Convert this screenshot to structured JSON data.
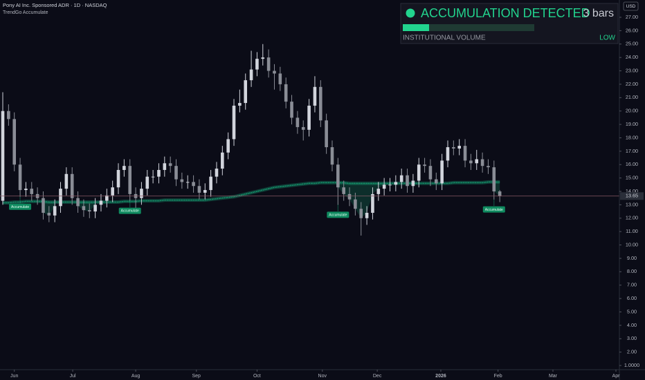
{
  "chart_data": {
    "type": "candlestick",
    "title": "Pony AI Inc. Sponsored ADR · 1D · NASDAQ",
    "indicator": "TrendGo Accumulate",
    "currency": "USD",
    "up_color": "#d1d4dc",
    "down_color": "#8a8d96",
    "open": [
      13.3,
      20,
      19.4,
      16,
      14.1,
      14.2,
      13.8,
      13.5,
      12.4,
      12.2,
      12.9,
      14.2,
      15.3,
      13.5,
      12.9,
      12.6,
      12.5,
      13,
      13.3,
      13.7,
      14.3,
      15.6,
      15.9,
      13.8,
      13.5,
      14.2,
      15.1,
      15.1,
      15.6,
      16.1,
      15.9,
      14.9,
      14.7,
      14.7,
      14.4,
      13.9,
      14.1,
      15.1,
      15.7,
      16.9,
      17.9,
      20.4,
      20.6,
      22.3,
      23.1,
      23.9,
      24,
      23,
      22.8,
      22,
      20.7,
      19.5,
      18.8,
      18.6,
      20.4,
      21.8,
      19.3,
      17.3,
      16,
      14.3,
      13.8,
      13.4,
      12.7,
      12,
      12.4,
      13.8,
      14.2,
      14.5,
      14.5,
      14.7,
      15.2,
      14.4,
      14.8,
      16,
      15.9,
      14.9,
      14.6,
      16.3,
      17.3,
      17.2,
      17.4,
      16.3,
      16.1,
      16.4,
      15.9,
      15.8,
      14
    ],
    "high": [
      21.4,
      20.5,
      19.9,
      16.5,
      14.7,
      14.7,
      14.3,
      14,
      12.9,
      13.4,
      14.7,
      15.8,
      15.8,
      14,
      13.4,
      13.1,
      13.5,
      13.8,
      14.2,
      14.8,
      16.1,
      16.4,
      16.4,
      14.3,
      14.7,
      15.6,
      15.6,
      16.1,
      16.6,
      16.6,
      16.4,
      15.4,
      15.2,
      15.2,
      14.9,
      14.6,
      15.6,
      16.2,
      17.4,
      18.4,
      20.9,
      21.6,
      22.8,
      24.5,
      24.4,
      25,
      24.6,
      23.5,
      23.3,
      22.5,
      21.2,
      20,
      19.3,
      20.9,
      22.6,
      22.3,
      19.8,
      17.8,
      16.5,
      14.8,
      14.3,
      13.9,
      13.2,
      12.9,
      14.3,
      14.7,
      15,
      15,
      15.2,
      15.7,
      15.7,
      15.3,
      16.5,
      16.5,
      16.4,
      15.4,
      16.8,
      17.8,
      17.8,
      17.9,
      17.9,
      16.8,
      17.1,
      16.9,
      16.4,
      16.3,
      14.1
    ],
    "low": [
      13,
      18.9,
      15.5,
      13.6,
      13.6,
      13.3,
      13,
      11.9,
      11.7,
      11.7,
      12.4,
      13.7,
      13,
      12.4,
      12.1,
      12,
      12,
      12.5,
      12.8,
      13.2,
      13.8,
      15.1,
      13.3,
      12.6,
      13,
      13.7,
      14.6,
      14.6,
      15.1,
      15.4,
      14.4,
      14.2,
      14.2,
      13.9,
      13.4,
      13.4,
      13.6,
      14.6,
      15.2,
      16.4,
      17.4,
      19.9,
      20.1,
      21.8,
      22.6,
      23.4,
      22.5,
      21.6,
      21.5,
      20.2,
      19,
      18.3,
      17.8,
      18.1,
      19.9,
      18.8,
      16.8,
      15.5,
      13,
      13.3,
      12.9,
      12.2,
      10.7,
      11.5,
      11.9,
      13.3,
      13.7,
      14,
      14,
      14.2,
      13.9,
      13.9,
      14.3,
      15.4,
      14.4,
      14.1,
      14.1,
      15.8,
      16.7,
      16.7,
      15.8,
      15.6,
      15.6,
      15.4,
      15.3,
      13.4,
      13.2
    ],
    "close": [
      20,
      19.4,
      16,
      14.1,
      14.2,
      13.8,
      13.5,
      12.4,
      12.2,
      12.9,
      14.2,
      15.3,
      13.5,
      12.9,
      12.6,
      12.5,
      13,
      13.3,
      13.7,
      14.3,
      15.6,
      15.9,
      13.8,
      13.5,
      14.2,
      15.1,
      15.1,
      15.6,
      16.1,
      15.9,
      14.9,
      14.7,
      14.7,
      14.4,
      13.9,
      14.1,
      15.1,
      15.7,
      16.9,
      17.9,
      20.4,
      20.6,
      22.3,
      23.1,
      23.9,
      24,
      23,
      22.8,
      22,
      20.7,
      19.5,
      18.8,
      18.6,
      20.4,
      21.8,
      19.3,
      17.3,
      16,
      14.3,
      13.8,
      13.4,
      12.7,
      12,
      12.4,
      13.8,
      14.2,
      14.5,
      14.5,
      14.7,
      15.2,
      14.4,
      14.8,
      16,
      15.9,
      14.9,
      14.6,
      16.3,
      17.3,
      17.2,
      17.4,
      16.3,
      16.1,
      16.4,
      15.9,
      15.8,
      14,
      13.65
    ],
    "moving_average": {
      "color": "#17a777",
      "values": [
        13.15,
        13.15,
        13.2,
        13.2,
        13.25,
        13.25,
        13.25,
        13.25,
        13.2,
        13.2,
        13.2,
        13.2,
        13.2,
        13.2,
        13.2,
        13.2,
        13.2,
        13.2,
        13.2,
        13.2,
        13.2,
        13.25,
        13.25,
        13.25,
        13.3,
        13.3,
        13.3,
        13.3,
        13.35,
        13.35,
        13.35,
        13.35,
        13.35,
        13.35,
        13.35,
        13.35,
        13.4,
        13.45,
        13.5,
        13.55,
        13.6,
        13.7,
        13.8,
        13.9,
        14.0,
        14.1,
        14.2,
        14.3,
        14.35,
        14.4,
        14.45,
        14.5,
        14.55,
        14.6,
        14.6,
        14.65,
        14.65,
        14.65,
        14.65,
        14.65,
        14.6,
        14.6,
        14.6,
        14.6,
        14.6,
        14.6,
        14.6,
        14.6,
        14.6,
        14.6,
        14.6,
        14.6,
        14.6,
        14.6,
        14.6,
        14.6,
        14.6,
        14.6,
        14.65,
        14.65,
        14.65,
        14.65,
        14.65,
        14.65,
        14.7,
        14.7,
        14.7
      ]
    },
    "signals": [
      {
        "x": 3,
        "text": "Accumulate"
      },
      {
        "x": 22,
        "text": "Accumulate"
      },
      {
        "x": 58,
        "text": "Accumulate"
      },
      {
        "x": 85,
        "text": "Accumulate"
      }
    ],
    "price_line": 13.65,
    "xlim": [
      -0.48,
      106.7
    ],
    "xticks": [
      {
        "value": 2.0,
        "label": "Jun"
      },
      {
        "value": 12.1,
        "label": "Jul"
      },
      {
        "value": 23.0,
        "label": "Aug"
      },
      {
        "value": 33.5,
        "label": "Sep"
      },
      {
        "value": 44.0,
        "label": "Oct"
      },
      {
        "value": 55.3,
        "label": "Nov"
      },
      {
        "value": 64.8,
        "label": "Dec"
      },
      {
        "value": 75.8,
        "label": "2026"
      },
      {
        "value": 85.7,
        "label": "Feb"
      },
      {
        "value": 95.2,
        "label": "Mar"
      },
      {
        "value": 106.1,
        "label": "Apr"
      }
    ],
    "ylim": [
      0.69,
      28.29
    ],
    "yticks": [
      {
        "value": 1,
        "label": "1.0000"
      },
      {
        "value": 2,
        "label": "2.00"
      },
      {
        "value": 3,
        "label": "3.00"
      },
      {
        "value": 4,
        "label": "4.00"
      },
      {
        "value": 5,
        "label": "5.00"
      },
      {
        "value": 6,
        "label": "6.00"
      },
      {
        "value": 7,
        "label": "7.00"
      },
      {
        "value": 8,
        "label": "8.00"
      },
      {
        "value": 9,
        "label": "9.00"
      },
      {
        "value": 10,
        "label": "10.00"
      },
      {
        "value": 11,
        "label": "11.00"
      },
      {
        "value": 12,
        "label": "12.00"
      },
      {
        "value": 13,
        "label": "13.00"
      },
      {
        "value": 14,
        "label": "14.00"
      },
      {
        "value": 15,
        "label": "15.00"
      },
      {
        "value": 16,
        "label": "16.00"
      },
      {
        "value": 17,
        "label": "17.00"
      },
      {
        "value": 18,
        "label": "18.00"
      },
      {
        "value": 19,
        "label": "19.00"
      },
      {
        "value": 20,
        "label": "20.00"
      },
      {
        "value": 21,
        "label": "21.00"
      },
      {
        "value": 22,
        "label": "22.00"
      },
      {
        "value": 23,
        "label": "23.00"
      },
      {
        "value": 24,
        "label": "24.00"
      },
      {
        "value": 25,
        "label": "25.00"
      },
      {
        "value": 26,
        "label": "26.00"
      },
      {
        "value": 27,
        "label": "27.00"
      }
    ]
  },
  "panel": {
    "status": "ACCUMULATION DETECTED",
    "count": "3 bars",
    "meter": 0.2,
    "metric": "INSTITUTIONAL VOLUME",
    "level": "LOW"
  }
}
